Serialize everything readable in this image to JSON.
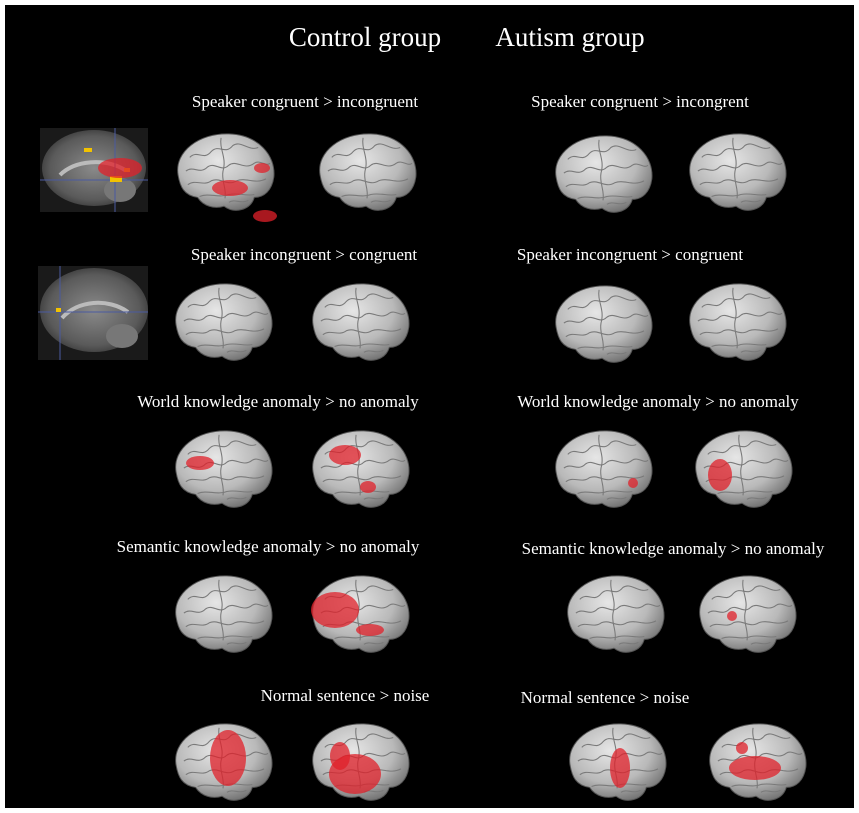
{
  "header": {
    "control": "Control group",
    "autism": "Autism group"
  },
  "rows": [
    {
      "control": "Speaker congruent > incongruent",
      "autism": "Speaker congruent > incongrent"
    },
    {
      "control": "Speaker incongruent > congruent",
      "autism": "Speaker incongruent > congruent"
    },
    {
      "control": "World knowledge anomaly > no anomaly",
      "autism": "World knowledge anomaly > no anomaly"
    },
    {
      "control": "Semantic knowledge anomaly > no anomaly",
      "autism": "Semantic knowledge anomaly > no anomaly"
    },
    {
      "control": "Normal sentence > noise",
      "autism": "Normal sentence > noise"
    }
  ]
}
